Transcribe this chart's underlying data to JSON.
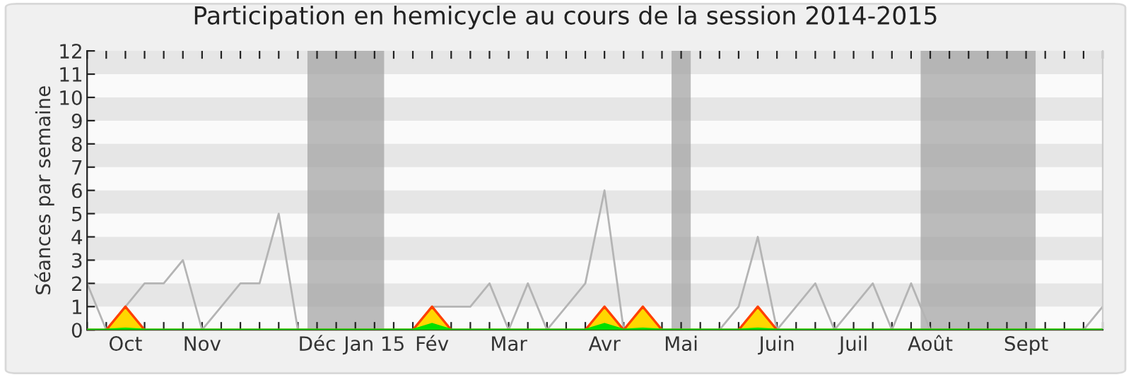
{
  "chart_data": {
    "type": "line",
    "title": "Participation en hemicycle au cours de la session 2014-2015",
    "ylabel": "Séances par semaine",
    "categories": [
      null,
      null,
      "Oct",
      null,
      null,
      null,
      "Nov",
      null,
      null,
      null,
      null,
      null,
      "Déc",
      null,
      null,
      "Jan 15",
      null,
      null,
      "Fév",
      null,
      null,
      null,
      "Mar",
      null,
      null,
      null,
      null,
      "Avr",
      null,
      null,
      null,
      "Mai",
      null,
      null,
      null,
      null,
      "Juin",
      null,
      null,
      null,
      "Juil",
      null,
      null,
      null,
      "Août",
      null,
      null,
      null,
      null,
      "Sept",
      null,
      null,
      null,
      null
    ],
    "bands": [
      {
        "axis": "x",
        "from": "Déc",
        "to": "Jan 15",
        "color": "#a0a0a0"
      },
      {
        "axis": "x",
        "from": "Mai",
        "to": "Mai",
        "color": "#a0a0a0"
      },
      {
        "axis": "x",
        "from": "Août",
        "to": "Sept",
        "color": "#a0a0a0"
      }
    ],
    "series": [
      {
        "color": "#b4b4b4",
        "values": [
          2,
          0,
          1,
          2,
          2,
          3,
          0,
          1,
          2,
          2,
          5,
          0,
          0,
          0,
          0,
          0,
          0,
          0,
          1,
          1,
          1,
          2,
          0,
          2,
          0,
          1,
          2,
          6,
          0,
          0,
          0,
          0,
          0,
          0,
          1,
          4,
          0,
          1,
          2,
          0,
          1,
          2,
          0,
          2,
          0,
          0,
          0,
          0,
          0,
          0,
          0,
          0,
          0,
          1
        ]
      },
      {
        "type": "area",
        "color": "#ffd700",
        "values": [
          0,
          0,
          1,
          0,
          0,
          0,
          0,
          0,
          0,
          0,
          0,
          0,
          0,
          0,
          0,
          0,
          0,
          0,
          1,
          0,
          0,
          0,
          0,
          0,
          0,
          0,
          0,
          1,
          0,
          1,
          0,
          0,
          0,
          0,
          0,
          1,
          0,
          0,
          0,
          0,
          0,
          0,
          0,
          0,
          0,
          0,
          0,
          0,
          0,
          0,
          0,
          0,
          0,
          0
        ]
      },
      {
        "type": "area",
        "color": "#00e000",
        "values": [
          0,
          0,
          0.05,
          0,
          0,
          0,
          0,
          0,
          0,
          0,
          0,
          0,
          0,
          0,
          0,
          0,
          0,
          0,
          0.25,
          0,
          0,
          0,
          0,
          0,
          0,
          0,
          0,
          0.25,
          0,
          0.05,
          0,
          0,
          0,
          0,
          0,
          0.05,
          0,
          0,
          0,
          0,
          0,
          0,
          0,
          0,
          0,
          0,
          0,
          0,
          0,
          0,
          0,
          0,
          0,
          0
        ]
      }
    ],
    "ylim": [
      0,
      12
    ],
    "yticks": [
      0,
      1,
      2,
      3,
      4,
      5,
      6,
      7,
      8,
      9,
      10,
      11,
      12
    ],
    "legend": false
  }
}
